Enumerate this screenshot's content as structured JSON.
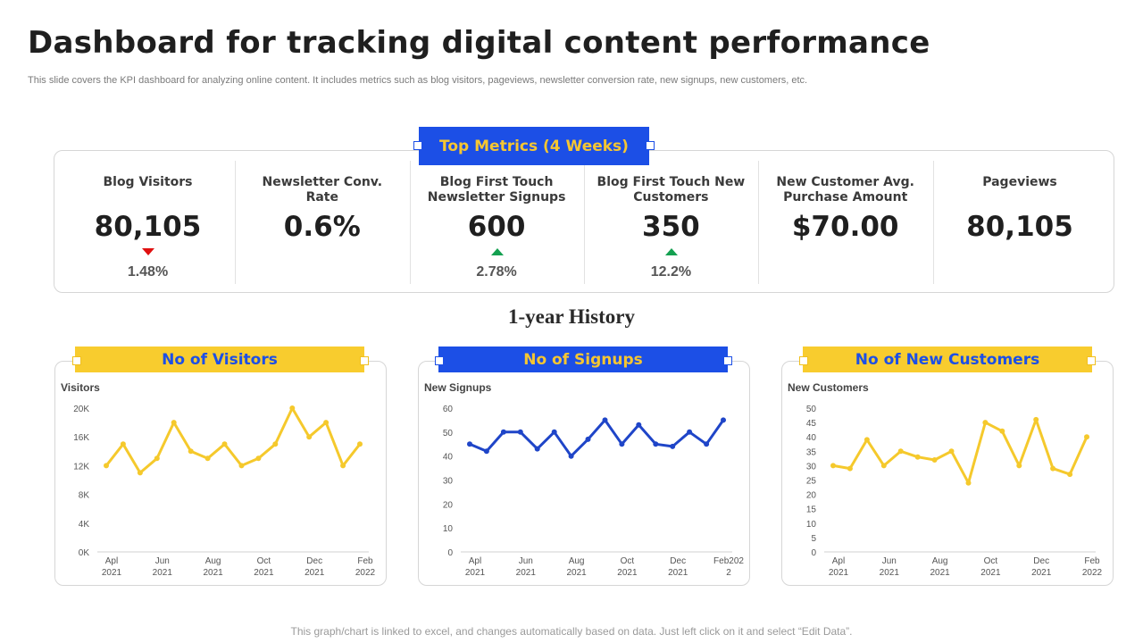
{
  "header": {
    "title": "Dashboard for tracking digital content performance",
    "subtitle": "This slide covers the KPI dashboard for analyzing online content. It includes metrics such as blog visitors, pageviews, newsletter conversion rate, new signups, new customers, etc."
  },
  "top_metrics": {
    "title": "Top Metrics (4 Weeks)",
    "items": [
      {
        "label": "Blog Visitors",
        "value": "80,105",
        "trend": "down",
        "change": "1.48%"
      },
      {
        "label": "Newsletter Conv. Rate",
        "value": "0.6%",
        "trend": "",
        "change": ""
      },
      {
        "label": "Blog First Touch Newsletter Signups",
        "value": "600",
        "trend": "up",
        "change": "2.78%"
      },
      {
        "label": "Blog First Touch  New Customers",
        "value": "350",
        "trend": "up",
        "change": "12.2%"
      },
      {
        "label": "New Customer Avg. Purchase Amount",
        "value": "$70.00",
        "trend": "",
        "change": ""
      },
      {
        "label": "Pageviews",
        "value": "80,105",
        "trend": "",
        "change": ""
      }
    ]
  },
  "history": {
    "title": "1-year History"
  },
  "colors": {
    "blue": "#1c4fe6",
    "yellow": "#f8cc2e",
    "line_yellow": "#f5c92c",
    "line_blue": "#1f45c8",
    "down": "#e01010",
    "up": "#14a050"
  },
  "chart_data": [
    {
      "type": "line",
      "title": "No of Visitors",
      "ylabel": "Visitors",
      "tick_labels": [
        [
          "Apl",
          "2021"
        ],
        [
          "Jun",
          "2021"
        ],
        [
          "Aug",
          "2021"
        ],
        [
          "Oct",
          "2021"
        ],
        [
          "Dec",
          "2021"
        ],
        [
          "Feb",
          "2022"
        ]
      ],
      "y_ticks": [
        "0K",
        "4K",
        "8K",
        "12K",
        "16K",
        "20K"
      ],
      "ylim": [
        0,
        20000
      ],
      "values": [
        12000,
        15000,
        11000,
        13000,
        18000,
        14000,
        13000,
        15000,
        12000,
        13000,
        15000,
        20000,
        16000,
        18000,
        12000,
        15000
      ]
    },
    {
      "type": "line",
      "title": "No of Signups",
      "ylabel": "New Signups",
      "tick_labels": [
        [
          "Apl",
          "2021"
        ],
        [
          "Jun",
          "2021"
        ],
        [
          "Aug",
          "2021"
        ],
        [
          "Oct",
          "2021"
        ],
        [
          "Dec",
          "2021"
        ],
        [
          "Feb202",
          "2"
        ]
      ],
      "y_ticks": [
        "0",
        "10",
        "20",
        "30",
        "40",
        "50",
        "60"
      ],
      "ylim": [
        0,
        60
      ],
      "values": [
        45,
        42,
        50,
        50,
        43,
        50,
        40,
        47,
        55,
        45,
        53,
        45,
        44,
        50,
        45,
        55
      ]
    },
    {
      "type": "line",
      "title": "No of New Customers",
      "ylabel": "New Customers",
      "tick_labels": [
        [
          "Apl",
          "2021"
        ],
        [
          "Jun",
          "2021"
        ],
        [
          "Aug",
          "2021"
        ],
        [
          "Oct",
          "2021"
        ],
        [
          "Dec",
          "2021"
        ],
        [
          "Feb",
          "2022"
        ]
      ],
      "y_ticks": [
        "0",
        "5",
        "10",
        "15",
        "20",
        "25",
        "30",
        "35",
        "40",
        "45",
        "50"
      ],
      "ylim": [
        0,
        50
      ],
      "values": [
        30,
        29,
        39,
        30,
        35,
        33,
        32,
        35,
        24,
        45,
        42,
        30,
        46,
        29,
        27,
        40
      ]
    }
  ],
  "footer": "This graph/chart is linked to excel, and changes automatically based on data. Just left click on it and select “Edit Data”."
}
